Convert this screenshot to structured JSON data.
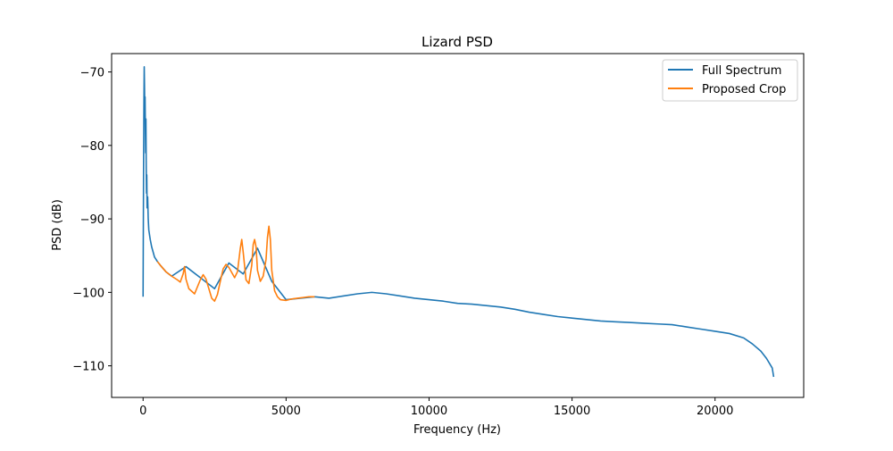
{
  "chart_data": {
    "type": "line",
    "title": "Lizard PSD",
    "xlabel": "Frequency (Hz)",
    "ylabel": "PSD (dB)",
    "xlim": [
      -1100,
      23100
    ],
    "ylim": [
      -114.3,
      -67.5
    ],
    "xticks": [
      0,
      5000,
      10000,
      15000,
      20000
    ],
    "xtick_labels": [
      "0",
      "5000",
      "10000",
      "15000",
      "20000"
    ],
    "yticks": [
      -70,
      -80,
      -90,
      -100,
      -110
    ],
    "ytick_labels": [
      "−70",
      "−80",
      "−90",
      "−100",
      "−110"
    ],
    "grid": false,
    "legend_position": "top-right",
    "series": [
      {
        "name": "Full Spectrum",
        "color": "#1f77b4",
        "x": [
          0,
          10,
          20,
          30,
          40,
          50,
          60,
          70,
          80,
          90,
          100,
          110,
          120,
          130,
          140,
          160,
          180,
          200,
          250,
          300,
          350,
          400,
          500,
          600,
          800,
          1000,
          1500,
          2000,
          2500,
          3000,
          3500,
          4000,
          4500,
          5000,
          5500,
          6000,
          6500,
          7000,
          7500,
          8000,
          8500,
          9000,
          9500,
          10000,
          10500,
          11000,
          11500,
          12000,
          12500,
          13000,
          13500,
          14000,
          14500,
          15000,
          15500,
          16000,
          16500,
          17000,
          17500,
          18000,
          18500,
          19000,
          19500,
          20000,
          20500,
          21000,
          21300,
          21600,
          21800,
          22000,
          22050
        ],
        "y": [
          -100.6,
          -90.0,
          -80.5,
          -74.0,
          -69.3,
          -72.0,
          -75.5,
          -73.4,
          -78.0,
          -81.0,
          -76.4,
          -83.0,
          -86.5,
          -84.0,
          -88.5,
          -87.0,
          -90.0,
          -91.5,
          -92.8,
          -93.8,
          -94.5,
          -95.2,
          -95.8,
          -96.3,
          -97.2,
          -97.8,
          -96.5,
          -98.0,
          -99.5,
          -96.0,
          -97.5,
          -94.0,
          -98.5,
          -101.0,
          -100.8,
          -100.6,
          -100.8,
          -100.5,
          -100.2,
          -100.0,
          -100.2,
          -100.5,
          -100.8,
          -101.0,
          -101.2,
          -101.5,
          -101.6,
          -101.8,
          -102.0,
          -102.3,
          -102.7,
          -103.0,
          -103.3,
          -103.5,
          -103.7,
          -103.9,
          -104.0,
          -104.1,
          -104.2,
          -104.3,
          -104.4,
          -104.7,
          -105.0,
          -105.3,
          -105.6,
          -106.2,
          -107.0,
          -108.0,
          -109.0,
          -110.3,
          -111.5
        ]
      },
      {
        "name": "Proposed Crop",
        "color": "#ff7f0e",
        "x": [
          500,
          600,
          800,
          1000,
          1200,
          1300,
          1400,
          1450,
          1500,
          1600,
          1800,
          2000,
          2100,
          2200,
          2300,
          2400,
          2500,
          2600,
          2700,
          2800,
          2900,
          3000,
          3100,
          3200,
          3300,
          3400,
          3450,
          3500,
          3600,
          3700,
          3800,
          3850,
          3900,
          3950,
          4000,
          4100,
          4200,
          4300,
          4350,
          4400,
          4450,
          4500,
          4600,
          4700,
          4800,
          5000,
          5200,
          5400,
          5600,
          5800,
          6000
        ],
        "y": [
          -95.8,
          -96.3,
          -97.2,
          -97.8,
          -98.3,
          -98.6,
          -97.5,
          -96.5,
          -98.2,
          -99.5,
          -100.2,
          -98.3,
          -97.6,
          -98.2,
          -99.5,
          -100.8,
          -101.2,
          -100.3,
          -98.5,
          -96.8,
          -96.2,
          -96.6,
          -97.3,
          -98.0,
          -97.2,
          -94.0,
          -92.8,
          -94.5,
          -98.3,
          -98.8,
          -96.3,
          -93.5,
          -92.8,
          -93.8,
          -97.0,
          -98.5,
          -97.8,
          -95.5,
          -92.5,
          -91.0,
          -92.8,
          -97.0,
          -99.8,
          -100.6,
          -101.0,
          -101.1,
          -100.9,
          -100.8,
          -100.7,
          -100.6,
          -100.6
        ]
      }
    ]
  }
}
